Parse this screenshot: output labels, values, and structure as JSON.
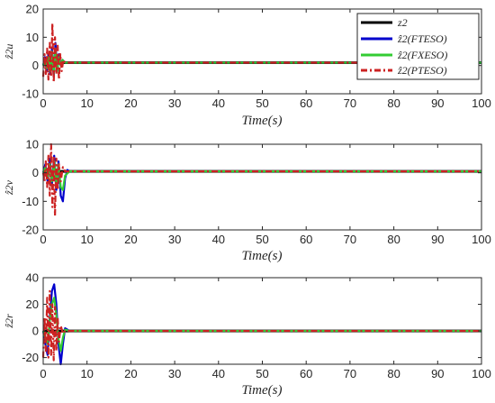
{
  "chart_data": [
    {
      "type": "line",
      "ylabel": "ẑ2u",
      "xlabel": "Time(s)",
      "xlim": [
        0,
        100
      ],
      "ylim": [
        -10,
        20
      ],
      "xticks": [
        0,
        10,
        20,
        30,
        40,
        50,
        60,
        70,
        80,
        90,
        100
      ],
      "yticks": [
        -10,
        0,
        10,
        20
      ],
      "grid": false,
      "legend_position": "top-right",
      "series": [
        {
          "name": "z2",
          "color": "#000000",
          "x": [
            0,
            0.4,
            1,
            2,
            3,
            4,
            5,
            6,
            100
          ],
          "y": [
            1,
            1,
            1,
            1,
            1,
            1,
            1,
            1,
            1
          ]
        },
        {
          "name": "ẑ2(FTESO)",
          "color": "#0000cc",
          "x": [
            0,
            0.4,
            0.8,
            1.2,
            1.6,
            2,
            2.4,
            2.8,
            3.2,
            3.6,
            4,
            4.4,
            5,
            6,
            100
          ],
          "y": [
            0,
            3,
            -2,
            4,
            -3,
            6,
            -4,
            8,
            -2,
            4,
            0,
            2,
            1,
            1,
            1
          ]
        },
        {
          "name": "ẑ2(FXESO)",
          "color": "#33cc33",
          "x": [
            0,
            0.4,
            0.8,
            1.2,
            1.6,
            2,
            2.4,
            2.8,
            3.2,
            3.6,
            4,
            4.4,
            5,
            6,
            100
          ],
          "y": [
            0,
            2,
            -1,
            3,
            -2,
            5,
            -3,
            6,
            -2,
            3,
            0,
            2,
            1,
            1,
            1
          ]
        },
        {
          "name": "ẑ2(PTESO)",
          "color": "#cc2222",
          "dash": true,
          "x": [
            0,
            0.3,
            0.6,
            0.9,
            1.2,
            1.5,
            1.8,
            2.1,
            2.4,
            2.7,
            3,
            3.3,
            3.6,
            3.9,
            4.2,
            4.6,
            5,
            6,
            100
          ],
          "y": [
            -4,
            4,
            -3,
            6,
            -5,
            8,
            -4,
            15,
            -6,
            10,
            -3,
            7,
            -5,
            4,
            -2,
            2,
            1,
            1,
            1
          ]
        }
      ]
    },
    {
      "type": "line",
      "ylabel": "ẑ2v",
      "xlabel": "Time(s)",
      "xlim": [
        0,
        100
      ],
      "ylim": [
        -20,
        10
      ],
      "xticks": [
        0,
        10,
        20,
        30,
        40,
        50,
        60,
        70,
        80,
        90,
        100
      ],
      "yticks": [
        -20,
        -10,
        0,
        10
      ],
      "grid": false,
      "series": [
        {
          "name": "z2",
          "color": "#000000",
          "x": [
            0,
            1,
            2,
            3,
            4,
            5,
            6,
            100
          ],
          "y": [
            0.5,
            0.5,
            0.5,
            0.5,
            0.5,
            0.5,
            0.5,
            0.5
          ]
        },
        {
          "name": "ẑ2(FTESO)",
          "color": "#0000cc",
          "x": [
            0,
            0.5,
            1,
            1.5,
            2,
            2.5,
            3,
            3.5,
            4,
            4.5,
            5,
            5.5,
            6,
            100
          ],
          "y": [
            0,
            3,
            -3,
            5,
            -4,
            6,
            -6,
            4,
            -8,
            -10,
            -2,
            1,
            0.5,
            0.5
          ]
        },
        {
          "name": "ẑ2(FXESO)",
          "color": "#33cc33",
          "x": [
            0,
            0.5,
            1,
            1.5,
            2,
            2.5,
            3,
            3.5,
            4,
            4.5,
            5,
            6,
            100
          ],
          "y": [
            0,
            2,
            -2,
            3,
            -3,
            4,
            -4,
            3,
            -5,
            -6,
            -1,
            0.5,
            0.5
          ]
        },
        {
          "name": "ẑ2(PTESO)",
          "color": "#cc2222",
          "dash": true,
          "x": [
            0,
            0.3,
            0.6,
            0.9,
            1.2,
            1.5,
            1.8,
            2.1,
            2.4,
            2.7,
            3,
            3.3,
            3.6,
            4,
            4.5,
            5,
            6,
            100
          ],
          "y": [
            0,
            -3,
            4,
            -5,
            6,
            -8,
            10,
            -12,
            6,
            -15,
            5,
            -6,
            3,
            -3,
            2,
            0.5,
            0.5,
            0.5
          ]
        }
      ]
    },
    {
      "type": "line",
      "ylabel": "ẑ2r",
      "xlabel": "Time(s)",
      "xlim": [
        0,
        100
      ],
      "ylim": [
        -25,
        40
      ],
      "xticks": [
        0,
        10,
        20,
        30,
        40,
        50,
        60,
        70,
        80,
        90,
        100
      ],
      "yticks": [
        -20,
        0,
        20,
        40
      ],
      "grid": false,
      "series": [
        {
          "name": "z2",
          "color": "#000000",
          "x": [
            0,
            1,
            2,
            3,
            4,
            5,
            6,
            100
          ],
          "y": [
            0,
            0,
            0,
            0,
            0,
            0,
            0,
            0
          ]
        },
        {
          "name": "ẑ2(FTESO)",
          "color": "#0000cc",
          "x": [
            0,
            0.5,
            1,
            1.5,
            2,
            2.5,
            3,
            3.5,
            4,
            4.5,
            5,
            5.5,
            6,
            100
          ],
          "y": [
            0,
            -10,
            -18,
            10,
            30,
            35,
            20,
            -10,
            -25,
            -10,
            2,
            1,
            0,
            0
          ]
        },
        {
          "name": "ẑ2(FXESO)",
          "color": "#33cc33",
          "x": [
            0,
            0.5,
            1,
            1.5,
            2,
            2.5,
            3,
            3.5,
            4,
            4.5,
            5,
            6,
            100
          ],
          "y": [
            0,
            -5,
            -10,
            8,
            20,
            25,
            12,
            -6,
            -15,
            -5,
            1,
            0,
            0
          ]
        },
        {
          "name": "ẑ2(PTESO)",
          "color": "#cc2222",
          "dash": true,
          "x": [
            0,
            0.3,
            0.6,
            0.9,
            1.2,
            1.5,
            1.8,
            2.1,
            2.4,
            2.7,
            3,
            3.3,
            3.6,
            4,
            4.5,
            5,
            6,
            100
          ],
          "y": [
            -20,
            10,
            -15,
            25,
            -20,
            30,
            -18,
            20,
            -22,
            18,
            -15,
            10,
            -8,
            4,
            -2,
            0,
            0,
            0
          ]
        }
      ]
    }
  ]
}
